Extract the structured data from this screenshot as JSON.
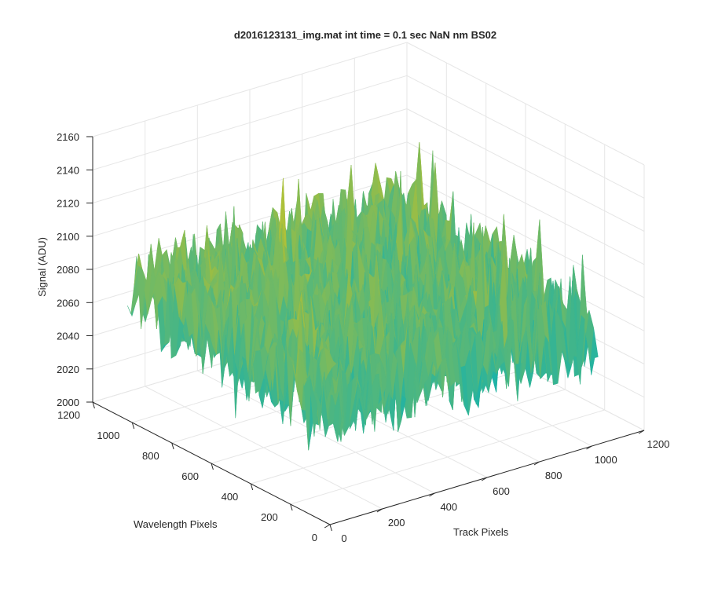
{
  "chart_data": {
    "type": "surface",
    "title": "d2016123131_img.mat int time = 0.1 sec  NaN nm BS02",
    "xlabel": "Track Pixels",
    "ylabel": "Wavelength Pixels",
    "zlabel": "Signal (ADU)",
    "xlim": [
      0,
      1200
    ],
    "ylim": [
      0,
      1200
    ],
    "zlim": [
      2000,
      2160
    ],
    "x_ticks": [
      "0",
      "200",
      "400",
      "600",
      "800",
      "1000",
      "1200"
    ],
    "y_ticks": [
      "0",
      "200",
      "400",
      "600",
      "800",
      "1000",
      "1200"
    ],
    "z_ticks": [
      "2000",
      "2020",
      "2040",
      "2060",
      "2080",
      "2100",
      "2120",
      "2140",
      "2160"
    ],
    "grid": true,
    "colormap": "parula",
    "surface": {
      "track_range": [
        0,
        1024
      ],
      "wavelength_range": [
        0,
        1024
      ],
      "mean_signal": 2070,
      "typical_min": 2015,
      "typical_max": 2150
    }
  }
}
